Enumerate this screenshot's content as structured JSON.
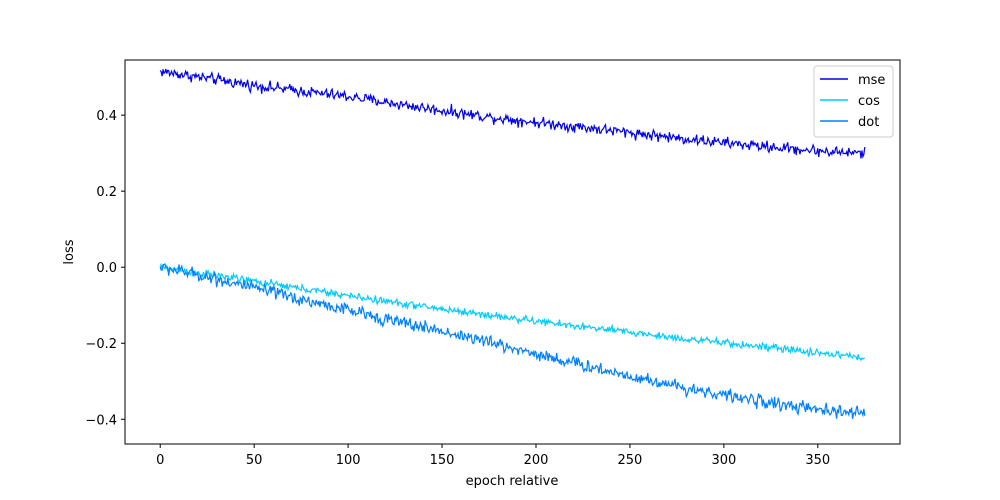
{
  "chart_data": {
    "type": "line",
    "title": "",
    "xlabel": "epoch relative",
    "ylabel": "loss",
    "xlim": [
      -18.75,
      393.75
    ],
    "ylim": [
      -0.465,
      0.545
    ],
    "xticks": [
      0,
      50,
      100,
      150,
      200,
      250,
      300,
      350
    ],
    "yticks": [
      -0.4,
      -0.2,
      0.0,
      0.2,
      0.4
    ],
    "xtick_labels": [
      "0",
      "50",
      "100",
      "150",
      "200",
      "250",
      "300",
      "350"
    ],
    "ytick_labels": [
      "−0.4",
      "−0.2",
      "0.0",
      "0.2",
      "0.4"
    ],
    "grid": false,
    "legend_position": "top-right",
    "x": [
      0,
      25,
      50,
      75,
      100,
      125,
      150,
      175,
      200,
      225,
      250,
      275,
      300,
      325,
      350,
      375
    ],
    "series": [
      {
        "name": "mse",
        "color": "#0000ee",
        "noise": 0.012,
        "values": [
          0.515,
          0.497,
          0.478,
          0.463,
          0.449,
          0.43,
          0.412,
          0.395,
          0.381,
          0.368,
          0.354,
          0.34,
          0.327,
          0.316,
          0.306,
          0.299
        ]
      },
      {
        "name": "cos",
        "color": "#00ccff",
        "noise": 0.008,
        "values": [
          0.0,
          -0.018,
          -0.037,
          -0.056,
          -0.075,
          -0.093,
          -0.11,
          -0.126,
          -0.142,
          -0.157,
          -0.171,
          -0.186,
          -0.199,
          -0.212,
          -0.225,
          -0.238
        ]
      },
      {
        "name": "dot",
        "color": "#0080ff",
        "noise": 0.014,
        "values": [
          0.0,
          -0.025,
          -0.055,
          -0.085,
          -0.113,
          -0.142,
          -0.168,
          -0.197,
          -0.228,
          -0.258,
          -0.286,
          -0.313,
          -0.336,
          -0.357,
          -0.376,
          -0.385
        ]
      }
    ]
  }
}
